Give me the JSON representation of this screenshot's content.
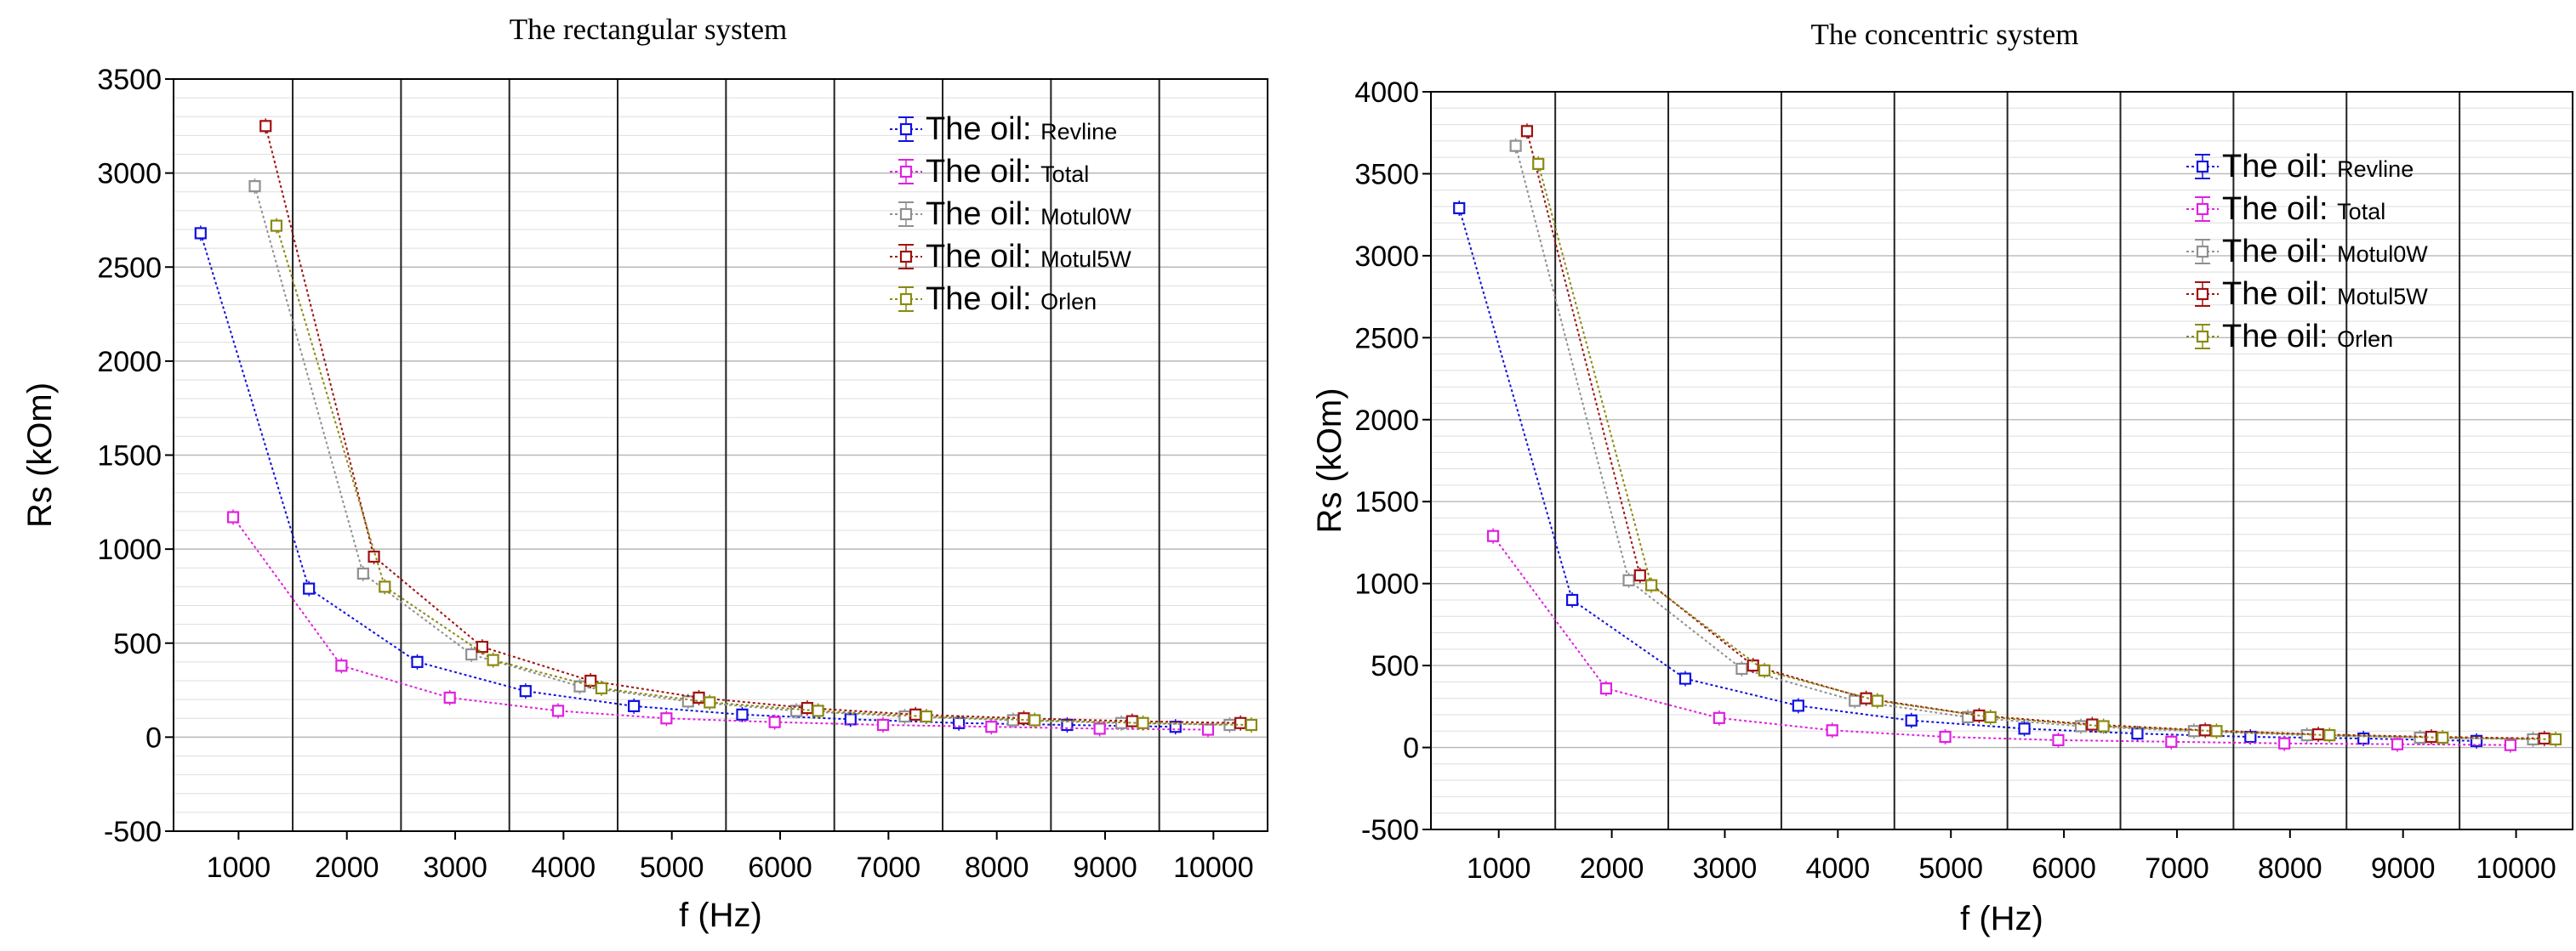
{
  "colors": {
    "Revline": "#1010e0",
    "Total": "#e020e0",
    "Motul0W": "#909090",
    "Motul5W": "#a01010",
    "Orlen": "#8a8a10"
  },
  "legend_prefix": "The oil:",
  "chart_data": [
    {
      "type": "line",
      "title": "The rectangular system",
      "xlabel": "f (Hz)",
      "ylabel": "Rs (kOm)",
      "xlim": [
        400,
        10500
      ],
      "ylim": [
        -500,
        3500
      ],
      "x_ticks": [
        1000,
        2000,
        3000,
        4000,
        5000,
        6000,
        7000,
        8000,
        9000,
        10000
      ],
      "y_ticks": [
        -500,
        0,
        500,
        1000,
        1500,
        2000,
        2500,
        3000,
        3500
      ],
      "x_boundaries": [
        1500,
        2500,
        3500,
        4500,
        5500,
        6500,
        7500,
        8500,
        9500
      ],
      "legend_position": "top-right",
      "series": [
        {
          "name": "Revline",
          "x": [
            650,
            1650,
            2650,
            3650,
            4650,
            5650,
            6650,
            7650,
            8650,
            9650
          ],
          "y": [
            2680,
            790,
            400,
            245,
            165,
            120,
            95,
            75,
            65,
            55
          ]
        },
        {
          "name": "Total",
          "x": [
            950,
            1950,
            2950,
            3950,
            4950,
            5950,
            6950,
            7950,
            8950,
            9950
          ],
          "y": [
            1170,
            380,
            210,
            140,
            100,
            80,
            65,
            55,
            45,
            40
          ]
        },
        {
          "name": "Motul0W",
          "x": [
            1150,
            2150,
            3150,
            4150,
            5150,
            6150,
            7150,
            8150,
            9150,
            10150
          ],
          "y": [
            2930,
            870,
            440,
            270,
            190,
            140,
            110,
            90,
            75,
            65
          ]
        },
        {
          "name": "Motul5W",
          "x": [
            1250,
            2250,
            3250,
            4250,
            5250,
            6250,
            7250,
            8250,
            9250,
            10250
          ],
          "y": [
            3250,
            960,
            480,
            300,
            210,
            155,
            120,
            100,
            85,
            75
          ]
        },
        {
          "name": "Orlen",
          "x": [
            1350,
            2350,
            3350,
            4350,
            5350,
            6350,
            7350,
            8350,
            9350,
            10350
          ],
          "y": [
            2720,
            800,
            410,
            260,
            185,
            140,
            110,
            90,
            75,
            65
          ]
        }
      ]
    },
    {
      "type": "line",
      "title": "The concentric system",
      "xlabel": "f (Hz)",
      "ylabel": "Rs (kOm)",
      "xlim": [
        400,
        10500
      ],
      "ylim": [
        -500,
        4000
      ],
      "x_ticks": [
        1000,
        2000,
        3000,
        4000,
        5000,
        6000,
        7000,
        8000,
        9000,
        10000
      ],
      "y_ticks": [
        -500,
        0,
        500,
        1000,
        1500,
        2000,
        2500,
        3000,
        3500,
        4000
      ],
      "x_boundaries": [
        1500,
        2500,
        3500,
        4500,
        5500,
        6500,
        7500,
        8500,
        9500
      ],
      "legend_position": "top-right",
      "series": [
        {
          "name": "Revline",
          "x": [
            650,
            1650,
            2650,
            3650,
            4650,
            5650,
            6650,
            7650,
            8650,
            9650
          ],
          "y": [
            3290,
            900,
            420,
            255,
            165,
            115,
            85,
            65,
            55,
            40
          ]
        },
        {
          "name": "Total",
          "x": [
            950,
            1950,
            2950,
            3950,
            4950,
            5950,
            6950,
            7950,
            8950,
            9950
          ],
          "y": [
            1290,
            360,
            180,
            105,
            65,
            45,
            35,
            25,
            20,
            15
          ]
        },
        {
          "name": "Motul0W",
          "x": [
            1150,
            2150,
            3150,
            4150,
            5150,
            6150,
            7150,
            8150,
            9150,
            10150
          ],
          "y": [
            3670,
            1020,
            480,
            285,
            185,
            130,
            100,
            75,
            60,
            50
          ]
        },
        {
          "name": "Motul5W",
          "x": [
            1250,
            2250,
            3250,
            4250,
            5250,
            6250,
            7250,
            8250,
            9250,
            10250
          ],
          "y": [
            3760,
            1050,
            500,
            300,
            195,
            140,
            105,
            80,
            65,
            55
          ]
        },
        {
          "name": "Orlen",
          "x": [
            1350,
            2350,
            3350,
            4350,
            5350,
            6350,
            7350,
            8350,
            9350,
            10350
          ],
          "y": [
            3560,
            990,
            470,
            285,
            185,
            130,
            100,
            75,
            60,
            50
          ]
        }
      ]
    }
  ]
}
